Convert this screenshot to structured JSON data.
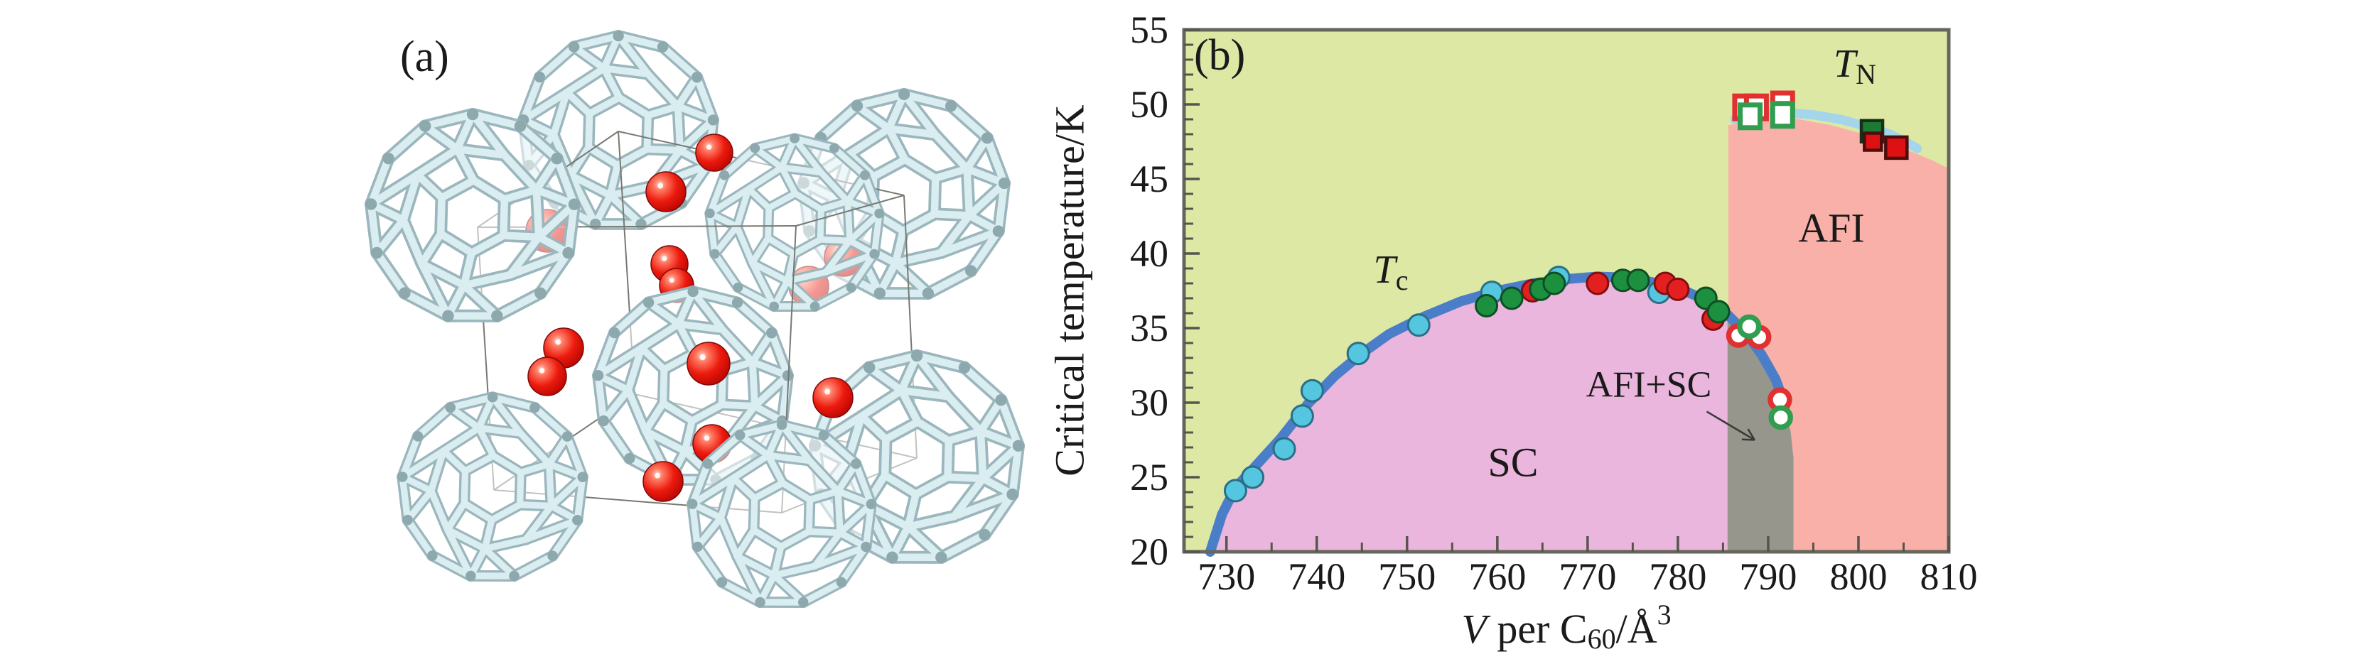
{
  "figure": {
    "background": "#ffffff",
    "description_visible_text_only": true
  },
  "panel_a": {
    "label": "(a)",
    "colors": {
      "cage_stick_light": "#daeef1",
      "cage_stick_shadow": "#9bb7bd",
      "cage_joint": "#8ea9ae",
      "atom_red": "#ec1a0e",
      "cell_edge": "#787872"
    }
  },
  "panel_b": {
    "label": "(b)"
  },
  "chart_data": {
    "type": "scatter",
    "title": "",
    "xlabel": "V per C60/A3",
    "ylabel": "Critical temperature/K",
    "xlim": [
      725.3,
      810
    ],
    "ylim": [
      20,
      55
    ],
    "grid": false,
    "legend": "none",
    "axes": {
      "x": {
        "label_parts": [
          {
            "t": "V"
          },
          {
            "t": " per C"
          },
          {
            "t": "60"
          },
          {
            "t": "/Å"
          },
          {
            "t": "3"
          }
        ],
        "ticks": [
          730,
          740,
          750,
          760,
          770,
          780,
          790,
          800,
          810
        ],
        "minor_ticks": [
          735,
          745,
          755,
          765,
          775,
          785,
          795,
          805
        ]
      },
      "y": {
        "label": "Critical temperature/K",
        "ticks": [
          20,
          25,
          30,
          35,
          40,
          45,
          50,
          55
        ],
        "minor_step": 1
      }
    },
    "regions": {
      "normal_bg": "#dde8a4",
      "sc_fill": "#eab6dd",
      "afi_fill": "#f9b0a8",
      "afi_sc_fill": "#97968c",
      "afi_left_edge_x": 785.5,
      "afi_sc_x_range": [
        785.5,
        792.8
      ],
      "afi_top_boundary": [
        [
          785.6,
          48.6
        ],
        [
          789,
          49.0
        ],
        [
          793,
          49.05
        ],
        [
          797,
          48.6
        ],
        [
          800,
          48.1
        ],
        [
          803,
          47.5
        ],
        [
          806,
          46.8
        ],
        [
          808,
          46.3
        ],
        [
          810,
          45.7
        ]
      ]
    },
    "curves": {
      "tc": {
        "color": "#4b7ec9",
        "width": 14,
        "points": [
          [
            728.2,
            20
          ],
          [
            729.5,
            22.5
          ],
          [
            731,
            24.3
          ],
          [
            733,
            25.6
          ],
          [
            736,
            27.6
          ],
          [
            739,
            29.9
          ],
          [
            742,
            31.8
          ],
          [
            745,
            33.3
          ],
          [
            748,
            34.6
          ],
          [
            752,
            35.8
          ],
          [
            756,
            36.8
          ],
          [
            760,
            37.5
          ],
          [
            764,
            38.0
          ],
          [
            768,
            38.3
          ],
          [
            771,
            38.45
          ],
          [
            774,
            38.4
          ],
          [
            777,
            38.1
          ],
          [
            780,
            37.7
          ],
          [
            783,
            36.9
          ],
          [
            785.5,
            35.9
          ],
          [
            787.5,
            34.7
          ],
          [
            789.3,
            33.2
          ],
          [
            790.8,
            31.6
          ],
          [
            791.9,
            29.8
          ]
        ],
        "fill_tail": [
          [
            792.5,
            28.0
          ],
          [
            792.8,
            26.3
          ]
        ]
      },
      "tn": {
        "color": "#a5d5eb",
        "width": 13,
        "points": [
          [
            786.3,
            49.0
          ],
          [
            789,
            49.35
          ],
          [
            792,
            49.45
          ],
          [
            795,
            49.3
          ],
          [
            798,
            49.0
          ],
          [
            801,
            48.5
          ],
          [
            803.5,
            48.0
          ],
          [
            805.5,
            47.4
          ],
          [
            806.5,
            47.05
          ]
        ]
      }
    },
    "series": [
      {
        "name": "tc-cyan-filled-circle",
        "marker": "circle",
        "fill": "#54c6e0",
        "stroke": "#2a6f87",
        "points": [
          [
            731.0,
            24.1
          ],
          [
            732.9,
            25.0
          ],
          [
            736.4,
            26.9
          ],
          [
            738.4,
            29.1
          ],
          [
            739.5,
            30.8
          ],
          [
            744.6,
            33.3
          ],
          [
            751.3,
            35.2
          ],
          [
            759.4,
            37.4
          ],
          [
            766.8,
            38.4
          ],
          [
            777.9,
            37.4
          ]
        ]
      },
      {
        "name": "tc-red-filled-circle",
        "marker": "circle",
        "fill": "#e41f1f",
        "stroke": "#801010",
        "points": [
          [
            763.9,
            37.5
          ],
          [
            771.1,
            38.0
          ],
          [
            778.6,
            38.0
          ],
          [
            780.0,
            37.6
          ],
          [
            783.9,
            35.6
          ]
        ]
      },
      {
        "name": "tc-green-filled-circle",
        "marker": "circle",
        "fill": "#1d9040",
        "stroke": "#0d4f22",
        "points": [
          [
            758.8,
            36.5
          ],
          [
            761.6,
            37.0
          ],
          [
            764.8,
            37.6
          ],
          [
            766.3,
            38.0
          ],
          [
            773.9,
            38.2
          ],
          [
            775.6,
            38.2
          ],
          [
            783.1,
            37.0
          ],
          [
            784.5,
            36.1
          ]
        ]
      },
      {
        "name": "red-open-circle",
        "marker": "circle-open",
        "stroke": "#e03030",
        "points": [
          [
            786.7,
            34.5
          ],
          [
            789.0,
            34.4
          ],
          [
            791.3,
            30.2
          ]
        ]
      },
      {
        "name": "green-open-circle",
        "marker": "circle-open",
        "stroke": "#2f9e4f",
        "points": [
          [
            787.9,
            35.1
          ],
          [
            791.4,
            29.0
          ]
        ]
      },
      {
        "name": "red-open-square",
        "marker": "square-open",
        "stroke": "#e03030",
        "points": [
          [
            787.4,
            49.8
          ],
          [
            788.7,
            49.8
          ],
          [
            791.6,
            50.0
          ]
        ]
      },
      {
        "name": "green-open-square",
        "marker": "square-open",
        "stroke": "#2f9e4f",
        "points": [
          [
            788.0,
            49.2
          ],
          [
            791.6,
            49.3
          ]
        ]
      },
      {
        "name": "green-filled-square",
        "marker": "square",
        "fill": "#1d7a34",
        "stroke": "#143018",
        "size": 30,
        "points": [
          [
            801.5,
            48.2
          ]
        ]
      },
      {
        "name": "red-filled-square",
        "marker": "square",
        "fill": "#dd1111",
        "stroke": "#4d0d0d",
        "size": 30,
        "points": [
          [
            801.6,
            47.5,
            24
          ],
          [
            804.2,
            47.1,
            30
          ]
        ]
      }
    ],
    "annotations": {
      "tc_label": {
        "main": "T",
        "sub": "c",
        "x": 748.2,
        "y": 38.9
      },
      "tn_label": {
        "main": "T",
        "sub": "N",
        "x": 799.6,
        "y": 52.7
      },
      "sc_label": {
        "text": "SC",
        "x": 761.7,
        "y": 26.0
      },
      "afi_label": {
        "text": "AFI",
        "x": 797.0,
        "y": 41.7
      },
      "afi_sc_label": {
        "text": "AFI+SC",
        "x": 776.8,
        "y": 31.2
      },
      "arrow": {
        "from": [
          783.2,
          29.4
        ],
        "to": [
          788.5,
          27.5
        ]
      }
    },
    "frame_color": "#66665c",
    "tick_color": "#55554c"
  }
}
